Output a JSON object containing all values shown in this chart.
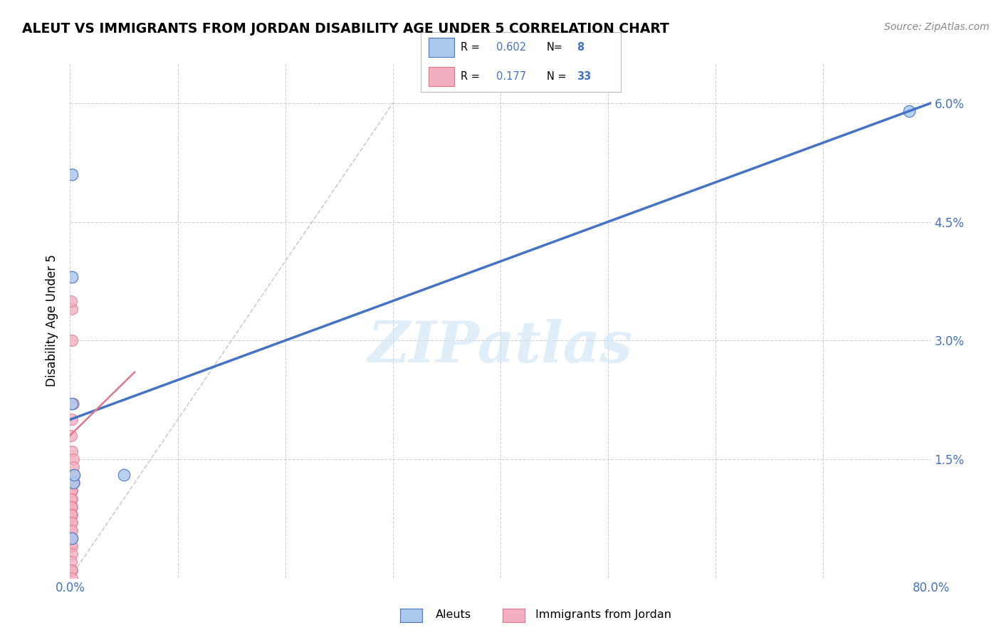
{
  "title": "ALEUT VS IMMIGRANTS FROM JORDAN DISABILITY AGE UNDER 5 CORRELATION CHART",
  "source": "Source: ZipAtlas.com",
  "ylabel": "Disability Age Under 5",
  "xlim": [
    0,
    0.8
  ],
  "ylim": [
    0,
    0.065
  ],
  "aleuts_R": 0.602,
  "aleuts_N": 8,
  "jordan_R": 0.177,
  "jordan_N": 33,
  "aleuts_color": "#adc8ed",
  "jordan_color": "#f2afc0",
  "line_aleuts_color": "#4472c4",
  "line_jordan_color": "#e07888",
  "background_color": "#ffffff",
  "watermark_color": "#cce4f5",
  "aleuts_scatter_x": [
    0.002,
    0.002,
    0.002,
    0.003,
    0.004,
    0.002,
    0.05,
    0.78
  ],
  "aleuts_scatter_y": [
    0.051,
    0.038,
    0.022,
    0.012,
    0.013,
    0.005,
    0.013,
    0.059
  ],
  "jordan_scatter_x": [
    0.002,
    0.001,
    0.002,
    0.003,
    0.002,
    0.001,
    0.002,
    0.003,
    0.003,
    0.004,
    0.001,
    0.002,
    0.001,
    0.002,
    0.001,
    0.002,
    0.001,
    0.002,
    0.001,
    0.001,
    0.002,
    0.001,
    0.002,
    0.001,
    0.002,
    0.001,
    0.002,
    0.004,
    0.002,
    0.001,
    0.002,
    0.001,
    0.002
  ],
  "jordan_scatter_y": [
    0.034,
    0.035,
    0.03,
    0.022,
    0.02,
    0.018,
    0.016,
    0.015,
    0.014,
    0.013,
    0.012,
    0.011,
    0.011,
    0.01,
    0.01,
    0.009,
    0.009,
    0.008,
    0.008,
    0.007,
    0.007,
    0.006,
    0.006,
    0.005,
    0.005,
    0.004,
    0.004,
    0.012,
    0.003,
    0.002,
    0.001,
    0.001,
    0.0
  ],
  "aleuts_line_x": [
    0.0,
    0.8
  ],
  "aleuts_line_y": [
    0.02,
    0.06
  ],
  "jordan_line_x": [
    0.0,
    0.06
  ],
  "jordan_line_y": [
    0.018,
    0.026
  ],
  "dashed_line_x": [
    0.0,
    0.3
  ],
  "dashed_line_y": [
    0.0,
    0.06
  ],
  "xtick_positions": [
    0.0,
    0.1,
    0.2,
    0.3,
    0.4,
    0.5,
    0.6,
    0.7,
    0.8
  ],
  "xtick_labels": [
    "0.0%",
    "",
    "",
    "",
    "",
    "",
    "",
    "",
    "80.0%"
  ],
  "ytick_positions": [
    0.0,
    0.015,
    0.03,
    0.045,
    0.06
  ],
  "ytick_labels": [
    "",
    "1.5%",
    "3.0%",
    "4.5%",
    "6.0%"
  ]
}
